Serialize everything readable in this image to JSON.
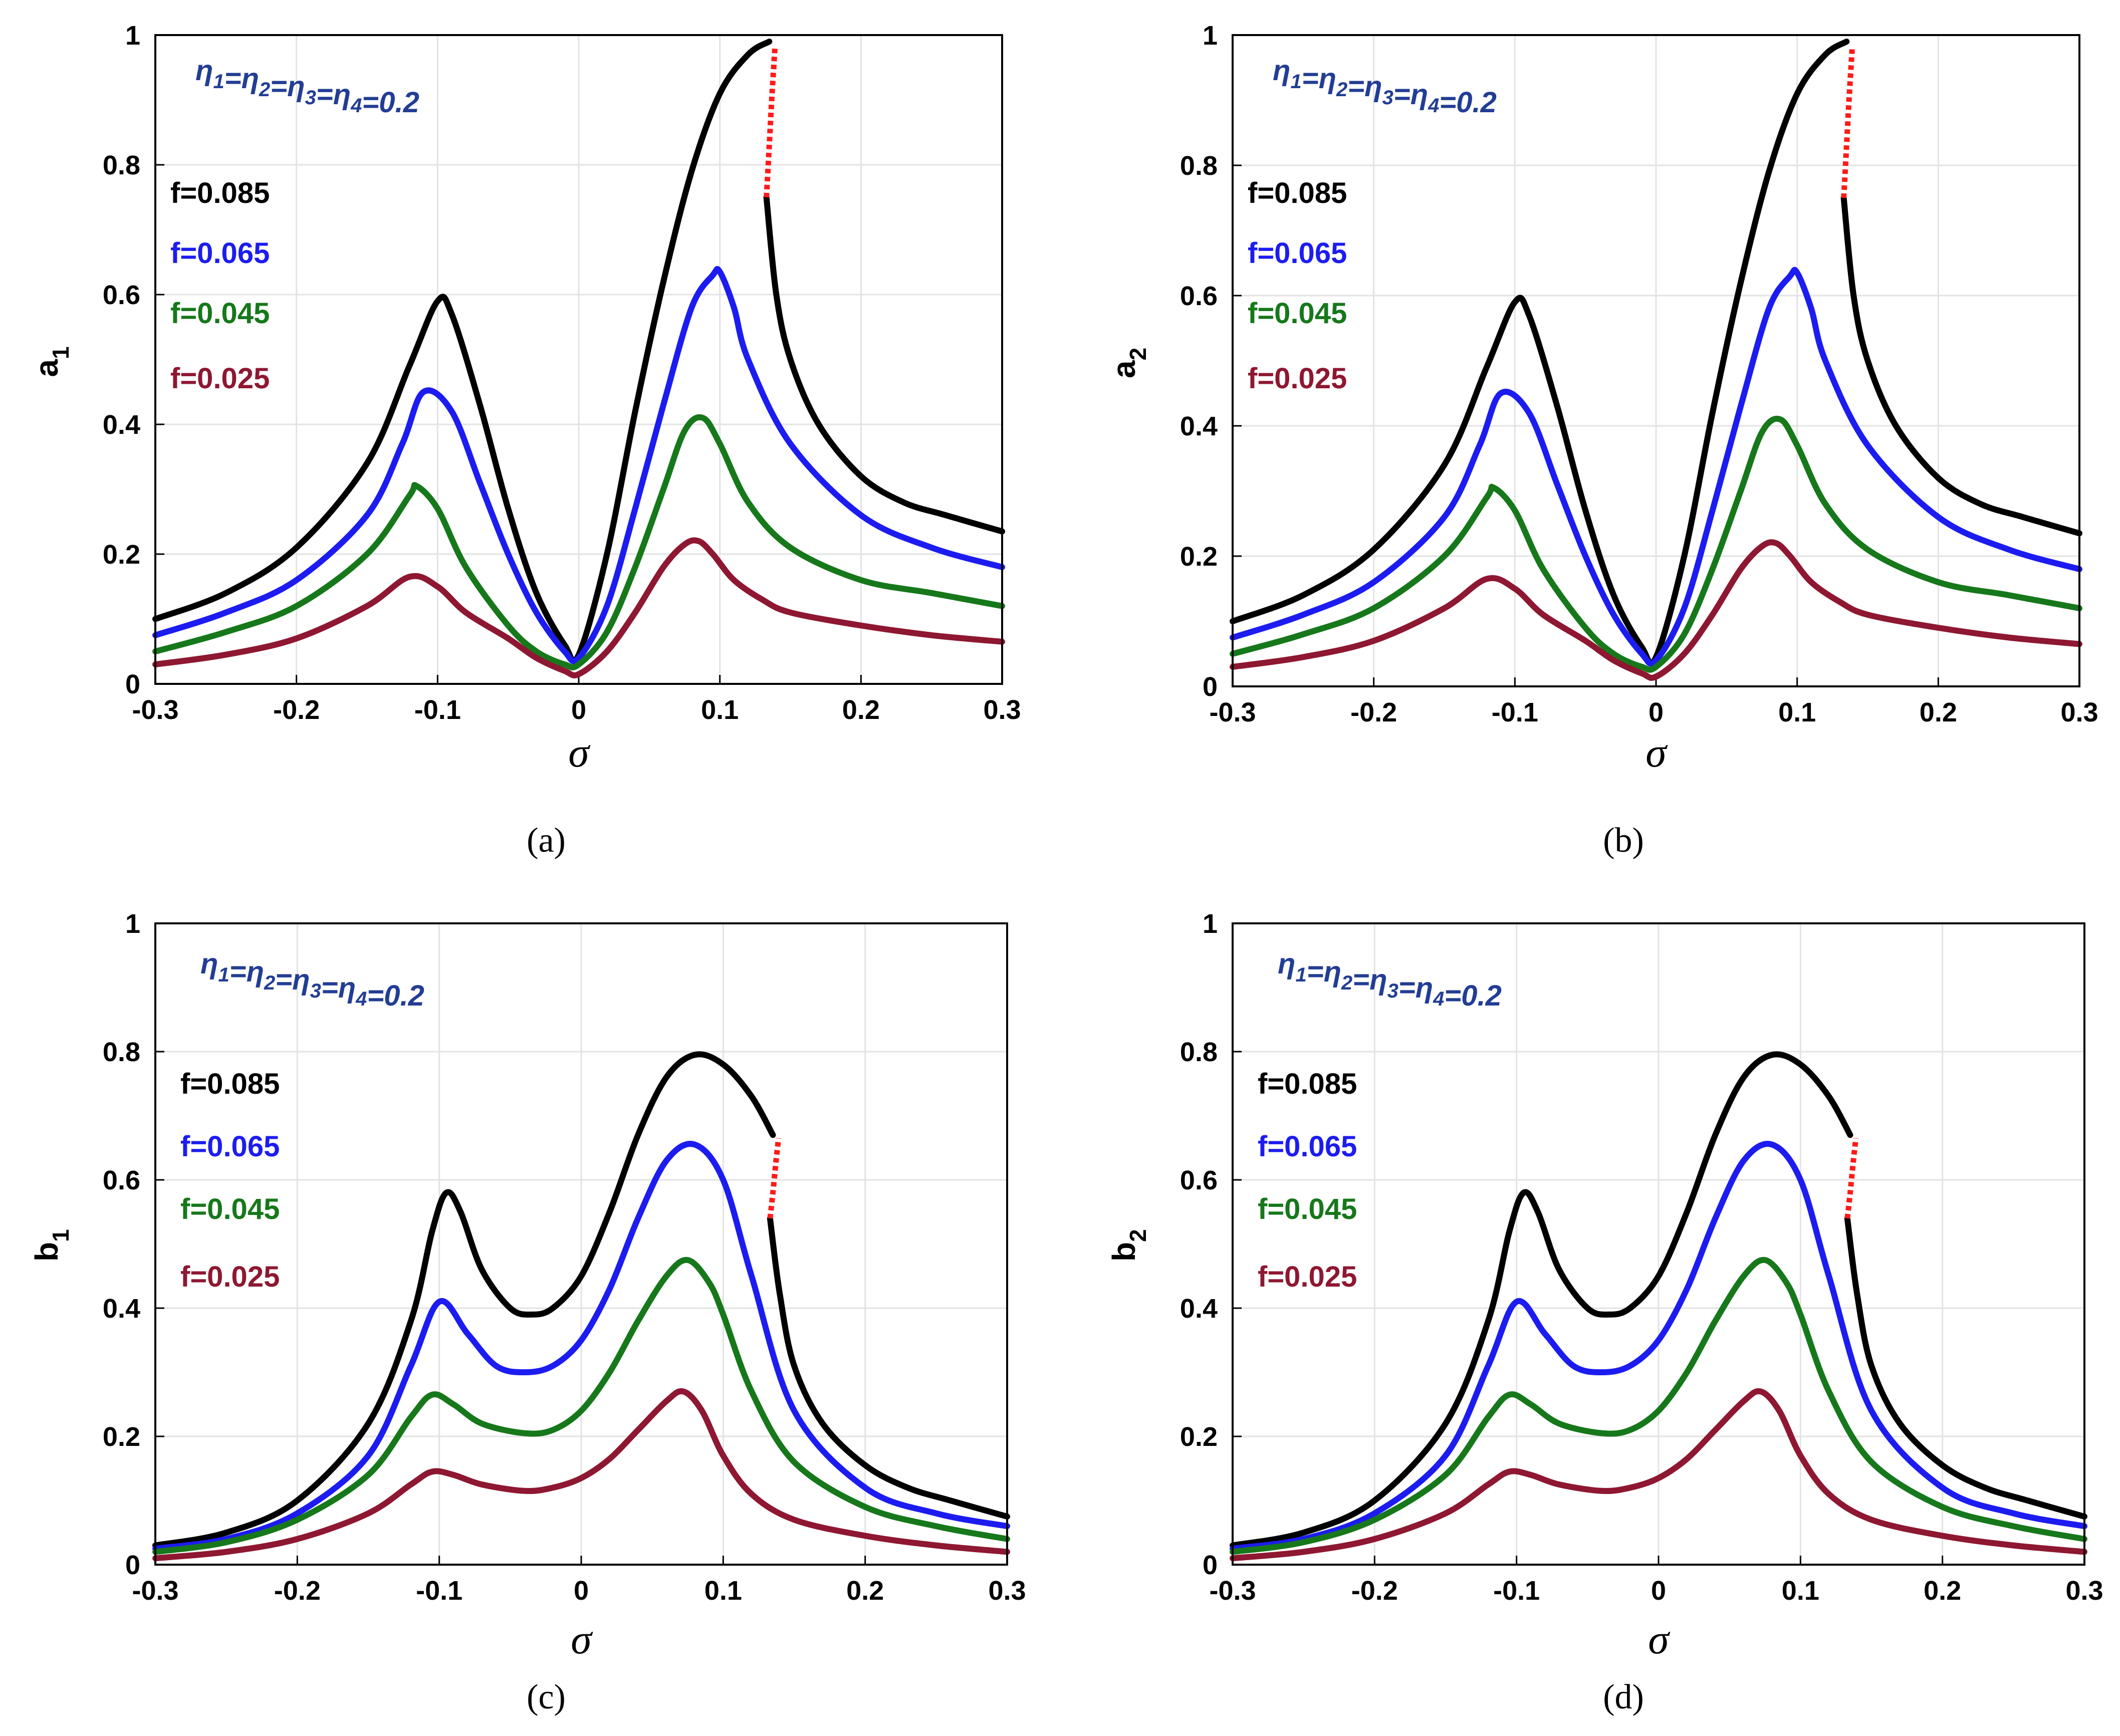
{
  "colors": {
    "f_0.085": "#000000",
    "f_0.065": "#1c1cf0",
    "f_0.045": "#16781a",
    "f_0.025": "#8e1731",
    "unstable": "#ff1a1a",
    "annotation": "#223d94"
  },
  "chart_data": [
    {
      "type": "line",
      "caption": "(a)",
      "xlabel": "σ",
      "ylabel": "a",
      "ylabel_sub": "1",
      "xlim": [
        -0.3,
        0.3
      ],
      "ylim": [
        0,
        1
      ],
      "xticks": [
        "-0.3",
        "-0.2",
        "-0.1",
        "0",
        "0.1",
        "0.2",
        "0.3"
      ],
      "yticks": [
        "0",
        "0.2",
        "0.4",
        "0.6",
        "0.8",
        "1"
      ],
      "grid": true,
      "annotation": "η1=η2=η3=η4=0.2",
      "legend": [
        "f=0.085",
        "f=0.065",
        "f=0.045",
        "f=0.025"
      ],
      "series": [
        {
          "name": "f=0.085",
          "x": [
            -0.3,
            -0.25,
            -0.2,
            -0.15,
            -0.12,
            -0.1,
            -0.09,
            -0.07,
            -0.05,
            -0.03,
            -0.01,
            0,
            0.02,
            0.04,
            0.06,
            0.08,
            0.1,
            0.12,
            0.135
          ],
          "y": [
            0.1,
            0.14,
            0.21,
            0.34,
            0.49,
            0.59,
            0.57,
            0.43,
            0.27,
            0.14,
            0.06,
            0.045,
            0.2,
            0.42,
            0.62,
            0.79,
            0.91,
            0.97,
            0.99
          ]
        },
        {
          "name": "f=0.085 (upper, decreasing)",
          "x": [
            0.133,
            0.14,
            0.15,
            0.17,
            0.2,
            0.23,
            0.26,
            0.3
          ],
          "y": [
            0.75,
            0.6,
            0.5,
            0.4,
            0.32,
            0.28,
            0.26,
            0.235
          ]
        },
        {
          "name": "unstable",
          "dashed": true,
          "x": [
            0.133,
            0.135,
            0.137,
            0.139
          ],
          "y": [
            0.75,
            0.83,
            0.91,
            0.98
          ]
        },
        {
          "name": "f=0.065",
          "x": [
            -0.3,
            -0.25,
            -0.2,
            -0.15,
            -0.125,
            -0.11,
            -0.09,
            -0.07,
            -0.05,
            -0.03,
            -0.01,
            0,
            0.02,
            0.04,
            0.06,
            0.08,
            0.095,
            0.1,
            0.11,
            0.12,
            0.15,
            0.2,
            0.25,
            0.3
          ],
          "y": [
            0.075,
            0.11,
            0.16,
            0.26,
            0.37,
            0.45,
            0.42,
            0.31,
            0.2,
            0.11,
            0.05,
            0.04,
            0.12,
            0.27,
            0.43,
            0.58,
            0.63,
            0.635,
            0.58,
            0.5,
            0.37,
            0.26,
            0.21,
            0.18
          ]
        },
        {
          "name": "f=0.045",
          "x": [
            -0.3,
            -0.25,
            -0.2,
            -0.15,
            -0.12,
            -0.115,
            -0.1,
            -0.08,
            -0.05,
            -0.03,
            -0.01,
            0,
            0.02,
            0.04,
            0.06,
            0.075,
            0.088,
            0.1,
            0.12,
            0.15,
            0.2,
            0.25,
            0.3
          ],
          "y": [
            0.05,
            0.08,
            0.12,
            0.2,
            0.29,
            0.305,
            0.27,
            0.18,
            0.09,
            0.05,
            0.03,
            0.03,
            0.08,
            0.18,
            0.3,
            0.39,
            0.41,
            0.37,
            0.28,
            0.21,
            0.16,
            0.14,
            0.12
          ]
        },
        {
          "name": "f=0.025",
          "x": [
            -0.3,
            -0.25,
            -0.2,
            -0.15,
            -0.12,
            -0.1,
            -0.08,
            -0.05,
            -0.03,
            -0.01,
            0,
            0.02,
            0.04,
            0.06,
            0.075,
            0.085,
            0.095,
            0.11,
            0.13,
            0.15,
            0.2,
            0.25,
            0.3
          ],
          "y": [
            0.03,
            0.045,
            0.07,
            0.12,
            0.165,
            0.15,
            0.11,
            0.07,
            0.04,
            0.02,
            0.015,
            0.05,
            0.11,
            0.18,
            0.215,
            0.22,
            0.2,
            0.16,
            0.13,
            0.11,
            0.09,
            0.075,
            0.065
          ]
        }
      ]
    },
    {
      "type": "line",
      "caption": "(b)",
      "xlabel": "σ",
      "ylabel": "a",
      "ylabel_sub": "2",
      "xlim": [
        -0.3,
        0.3
      ],
      "ylim": [
        0,
        1
      ],
      "xticks": [
        "-0.3",
        "-0.2",
        "-0.1",
        "0",
        "0.1",
        "0.2",
        "0.3"
      ],
      "yticks": [
        "0",
        "0.2",
        "0.4",
        "0.6",
        "0.8",
        "1"
      ],
      "grid": true,
      "annotation": "η1=η2=η3=η4=0.2",
      "legend": [
        "f=0.085",
        "f=0.065",
        "f=0.045",
        "f=0.025"
      ],
      "series": [
        {
          "name": "f=0.085",
          "x": [
            -0.3,
            -0.25,
            -0.2,
            -0.15,
            -0.12,
            -0.1,
            -0.09,
            -0.07,
            -0.05,
            -0.03,
            -0.01,
            0,
            0.02,
            0.04,
            0.06,
            0.08,
            0.1,
            0.12,
            0.135
          ],
          "y": [
            0.1,
            0.14,
            0.21,
            0.34,
            0.49,
            0.59,
            0.57,
            0.43,
            0.27,
            0.14,
            0.06,
            0.045,
            0.2,
            0.42,
            0.62,
            0.79,
            0.91,
            0.97,
            0.99
          ]
        },
        {
          "name": "f=0.085 (upper, decreasing)",
          "x": [
            0.133,
            0.14,
            0.15,
            0.17,
            0.2,
            0.23,
            0.26,
            0.3
          ],
          "y": [
            0.75,
            0.6,
            0.5,
            0.4,
            0.32,
            0.28,
            0.26,
            0.235
          ]
        },
        {
          "name": "unstable",
          "dashed": true,
          "x": [
            0.133,
            0.135,
            0.137,
            0.139
          ],
          "y": [
            0.75,
            0.83,
            0.91,
            0.98
          ]
        },
        {
          "name": "f=0.065",
          "x": [
            -0.3,
            -0.25,
            -0.2,
            -0.15,
            -0.125,
            -0.11,
            -0.09,
            -0.07,
            -0.05,
            -0.03,
            -0.01,
            0,
            0.02,
            0.04,
            0.06,
            0.08,
            0.095,
            0.1,
            0.11,
            0.12,
            0.15,
            0.2,
            0.25,
            0.3
          ],
          "y": [
            0.075,
            0.11,
            0.16,
            0.26,
            0.37,
            0.45,
            0.42,
            0.31,
            0.2,
            0.11,
            0.05,
            0.04,
            0.12,
            0.27,
            0.43,
            0.58,
            0.63,
            0.635,
            0.58,
            0.5,
            0.37,
            0.26,
            0.21,
            0.18
          ]
        },
        {
          "name": "f=0.045",
          "x": [
            -0.3,
            -0.25,
            -0.2,
            -0.15,
            -0.12,
            -0.115,
            -0.1,
            -0.08,
            -0.05,
            -0.03,
            -0.01,
            0,
            0.02,
            0.04,
            0.06,
            0.075,
            0.088,
            0.1,
            0.12,
            0.15,
            0.2,
            0.25,
            0.3
          ],
          "y": [
            0.05,
            0.08,
            0.12,
            0.2,
            0.29,
            0.305,
            0.27,
            0.18,
            0.09,
            0.05,
            0.03,
            0.03,
            0.08,
            0.18,
            0.3,
            0.39,
            0.41,
            0.37,
            0.28,
            0.21,
            0.16,
            0.14,
            0.12
          ]
        },
        {
          "name": "f=0.025",
          "x": [
            -0.3,
            -0.25,
            -0.2,
            -0.15,
            -0.12,
            -0.1,
            -0.08,
            -0.05,
            -0.03,
            -0.01,
            0,
            0.02,
            0.04,
            0.06,
            0.075,
            0.085,
            0.095,
            0.11,
            0.13,
            0.15,
            0.2,
            0.25,
            0.3
          ],
          "y": [
            0.03,
            0.045,
            0.07,
            0.12,
            0.165,
            0.15,
            0.11,
            0.07,
            0.04,
            0.02,
            0.015,
            0.05,
            0.11,
            0.18,
            0.215,
            0.22,
            0.2,
            0.16,
            0.13,
            0.11,
            0.09,
            0.075,
            0.065
          ]
        }
      ]
    },
    {
      "type": "line",
      "caption": "(c)",
      "xlabel": "σ",
      "ylabel": "b",
      "ylabel_sub": "1",
      "xlim": [
        -0.3,
        0.3
      ],
      "ylim": [
        0,
        1
      ],
      "xticks": [
        "-0.3",
        "-0.2",
        "-0.1",
        "0",
        "0.1",
        "0.2",
        "0.3"
      ],
      "yticks": [
        "0",
        "0.2",
        "0.4",
        "0.6",
        "0.8",
        "1"
      ],
      "grid": true,
      "annotation": "η1=η2=η3=η4=0.2",
      "legend": [
        "f=0.085",
        "f=0.065",
        "f=0.045",
        "f=0.025"
      ],
      "series": [
        {
          "name": "f=0.085",
          "x": [
            -0.3,
            -0.25,
            -0.2,
            -0.15,
            -0.12,
            -0.105,
            -0.095,
            -0.085,
            -0.07,
            -0.05,
            -0.035,
            -0.02,
            0,
            0.02,
            0.04,
            0.06,
            0.08,
            0.1,
            0.12,
            0.135
          ],
          "y": [
            0.03,
            0.05,
            0.1,
            0.22,
            0.38,
            0.52,
            0.58,
            0.55,
            0.46,
            0.4,
            0.39,
            0.4,
            0.45,
            0.55,
            0.67,
            0.76,
            0.795,
            0.78,
            0.73,
            0.67
          ]
        },
        {
          "name": "f=0.085 (upper, decreasing)",
          "x": [
            0.133,
            0.14,
            0.15,
            0.17,
            0.2,
            0.23,
            0.26,
            0.3
          ],
          "y": [
            0.54,
            0.42,
            0.31,
            0.22,
            0.155,
            0.12,
            0.1,
            0.075
          ]
        },
        {
          "name": "unstable",
          "dashed": true,
          "x": [
            0.133,
            0.135,
            0.137,
            0.139
          ],
          "y": [
            0.54,
            0.58,
            0.625,
            0.665
          ]
        },
        {
          "name": "f=0.065",
          "x": [
            -0.3,
            -0.25,
            -0.2,
            -0.15,
            -0.12,
            -0.1,
            -0.08,
            -0.06,
            -0.04,
            -0.02,
            0,
            0.02,
            0.04,
            0.06,
            0.08,
            0.1,
            0.12,
            0.15,
            0.2,
            0.25,
            0.3
          ],
          "y": [
            0.025,
            0.04,
            0.08,
            0.17,
            0.31,
            0.41,
            0.36,
            0.31,
            0.3,
            0.31,
            0.35,
            0.43,
            0.54,
            0.63,
            0.655,
            0.6,
            0.45,
            0.24,
            0.12,
            0.08,
            0.06
          ]
        },
        {
          "name": "f=0.045",
          "x": [
            -0.3,
            -0.25,
            -0.2,
            -0.15,
            -0.12,
            -0.105,
            -0.09,
            -0.07,
            -0.04,
            -0.02,
            0,
            0.02,
            0.04,
            0.06,
            0.075,
            0.09,
            0.1,
            0.12,
            0.15,
            0.2,
            0.25,
            0.3
          ],
          "y": [
            0.02,
            0.035,
            0.07,
            0.14,
            0.23,
            0.265,
            0.25,
            0.22,
            0.205,
            0.21,
            0.24,
            0.3,
            0.38,
            0.45,
            0.475,
            0.44,
            0.39,
            0.27,
            0.16,
            0.09,
            0.06,
            0.04
          ]
        },
        {
          "name": "f=0.025",
          "x": [
            -0.3,
            -0.25,
            -0.2,
            -0.15,
            -0.12,
            -0.105,
            -0.09,
            -0.07,
            -0.04,
            -0.02,
            0,
            0.02,
            0.04,
            0.06,
            0.072,
            0.085,
            0.1,
            0.12,
            0.15,
            0.2,
            0.25,
            0.3
          ],
          "y": [
            0.01,
            0.02,
            0.04,
            0.08,
            0.125,
            0.145,
            0.14,
            0.125,
            0.115,
            0.12,
            0.135,
            0.165,
            0.21,
            0.255,
            0.27,
            0.24,
            0.17,
            0.11,
            0.07,
            0.045,
            0.03,
            0.02
          ]
        }
      ]
    },
    {
      "type": "line",
      "caption": "(d)",
      "xlabel": "σ",
      "ylabel": "b",
      "ylabel_sub": "2",
      "xlim": [
        -0.3,
        0.3
      ],
      "ylim": [
        0,
        1
      ],
      "xticks": [
        "-0.3",
        "-0.2",
        "-0.1",
        "0",
        "0.1",
        "0.2",
        "0.3"
      ],
      "yticks": [
        "0",
        "0.2",
        "0.4",
        "0.6",
        "0.8",
        "1"
      ],
      "grid": true,
      "annotation": "η1=η2=η3=η4=0.2",
      "legend": [
        "f=0.085",
        "f=0.065",
        "f=0.045",
        "f=0.025"
      ],
      "series": [
        {
          "name": "f=0.085",
          "x": [
            -0.3,
            -0.25,
            -0.2,
            -0.15,
            -0.12,
            -0.105,
            -0.095,
            -0.085,
            -0.07,
            -0.05,
            -0.035,
            -0.02,
            0,
            0.02,
            0.04,
            0.06,
            0.08,
            0.1,
            0.12,
            0.135
          ],
          "y": [
            0.03,
            0.05,
            0.1,
            0.22,
            0.38,
            0.52,
            0.58,
            0.55,
            0.46,
            0.4,
            0.39,
            0.4,
            0.45,
            0.55,
            0.67,
            0.76,
            0.795,
            0.78,
            0.73,
            0.67
          ]
        },
        {
          "name": "f=0.085 (upper, decreasing)",
          "x": [
            0.133,
            0.14,
            0.15,
            0.17,
            0.2,
            0.23,
            0.26,
            0.3
          ],
          "y": [
            0.54,
            0.42,
            0.31,
            0.22,
            0.155,
            0.12,
            0.1,
            0.075
          ]
        },
        {
          "name": "unstable",
          "dashed": true,
          "x": [
            0.133,
            0.135,
            0.137,
            0.139
          ],
          "y": [
            0.54,
            0.58,
            0.625,
            0.665
          ]
        },
        {
          "name": "f=0.065",
          "x": [
            -0.3,
            -0.25,
            -0.2,
            -0.15,
            -0.12,
            -0.1,
            -0.08,
            -0.06,
            -0.04,
            -0.02,
            0,
            0.02,
            0.04,
            0.06,
            0.08,
            0.1,
            0.12,
            0.15,
            0.2,
            0.25,
            0.3
          ],
          "y": [
            0.025,
            0.04,
            0.08,
            0.17,
            0.31,
            0.41,
            0.36,
            0.31,
            0.3,
            0.31,
            0.35,
            0.43,
            0.54,
            0.63,
            0.655,
            0.6,
            0.45,
            0.24,
            0.12,
            0.08,
            0.06
          ]
        },
        {
          "name": "f=0.045",
          "x": [
            -0.3,
            -0.25,
            -0.2,
            -0.15,
            -0.12,
            -0.105,
            -0.09,
            -0.07,
            -0.04,
            -0.02,
            0,
            0.02,
            0.04,
            0.06,
            0.075,
            0.09,
            0.1,
            0.12,
            0.15,
            0.2,
            0.25,
            0.3
          ],
          "y": [
            0.02,
            0.035,
            0.07,
            0.14,
            0.23,
            0.265,
            0.25,
            0.22,
            0.205,
            0.21,
            0.24,
            0.3,
            0.38,
            0.45,
            0.475,
            0.44,
            0.39,
            0.27,
            0.16,
            0.09,
            0.06,
            0.04
          ]
        },
        {
          "name": "f=0.025",
          "x": [
            -0.3,
            -0.25,
            -0.2,
            -0.15,
            -0.12,
            -0.105,
            -0.09,
            -0.07,
            -0.04,
            -0.02,
            0,
            0.02,
            0.04,
            0.06,
            0.072,
            0.085,
            0.1,
            0.12,
            0.15,
            0.2,
            0.25,
            0.3
          ],
          "y": [
            0.01,
            0.02,
            0.04,
            0.08,
            0.125,
            0.145,
            0.14,
            0.125,
            0.115,
            0.12,
            0.135,
            0.165,
            0.21,
            0.255,
            0.27,
            0.24,
            0.17,
            0.11,
            0.07,
            0.045,
            0.03,
            0.02
          ]
        }
      ]
    }
  ]
}
